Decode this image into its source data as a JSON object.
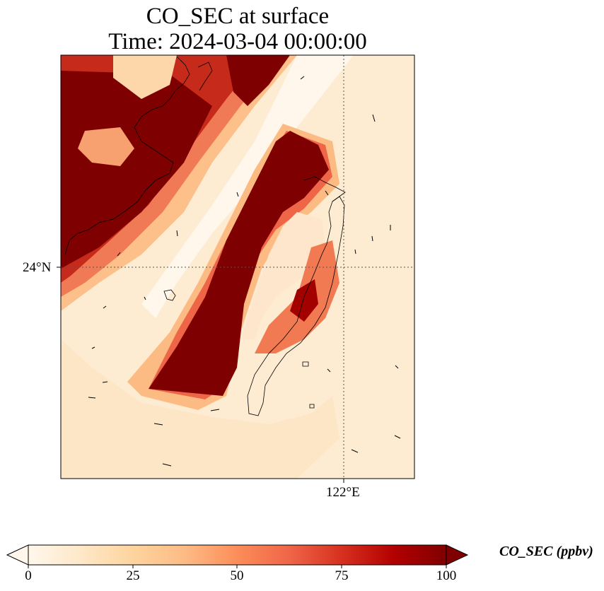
{
  "title": {
    "line1": "CO_SEC at surface",
    "line2": "Time: 2024-03-04 00:00:00"
  },
  "map": {
    "lat_label": "24°N",
    "lon_label": "122°E",
    "gridlines": "dotted",
    "coastline_color": "#000000"
  },
  "colorbar": {
    "label": "CO_SEC (ppbv)",
    "ticks": [
      "0",
      "25",
      "50",
      "75",
      "100"
    ],
    "range": [
      0,
      100
    ],
    "extend": "both",
    "colormap": "OrRd",
    "colors": [
      "#fff7ec",
      "#fee8c8",
      "#fdd49e",
      "#fdbb84",
      "#fc8d59",
      "#ef6548",
      "#d7301f",
      "#b30000",
      "#7f0000"
    ]
  }
}
